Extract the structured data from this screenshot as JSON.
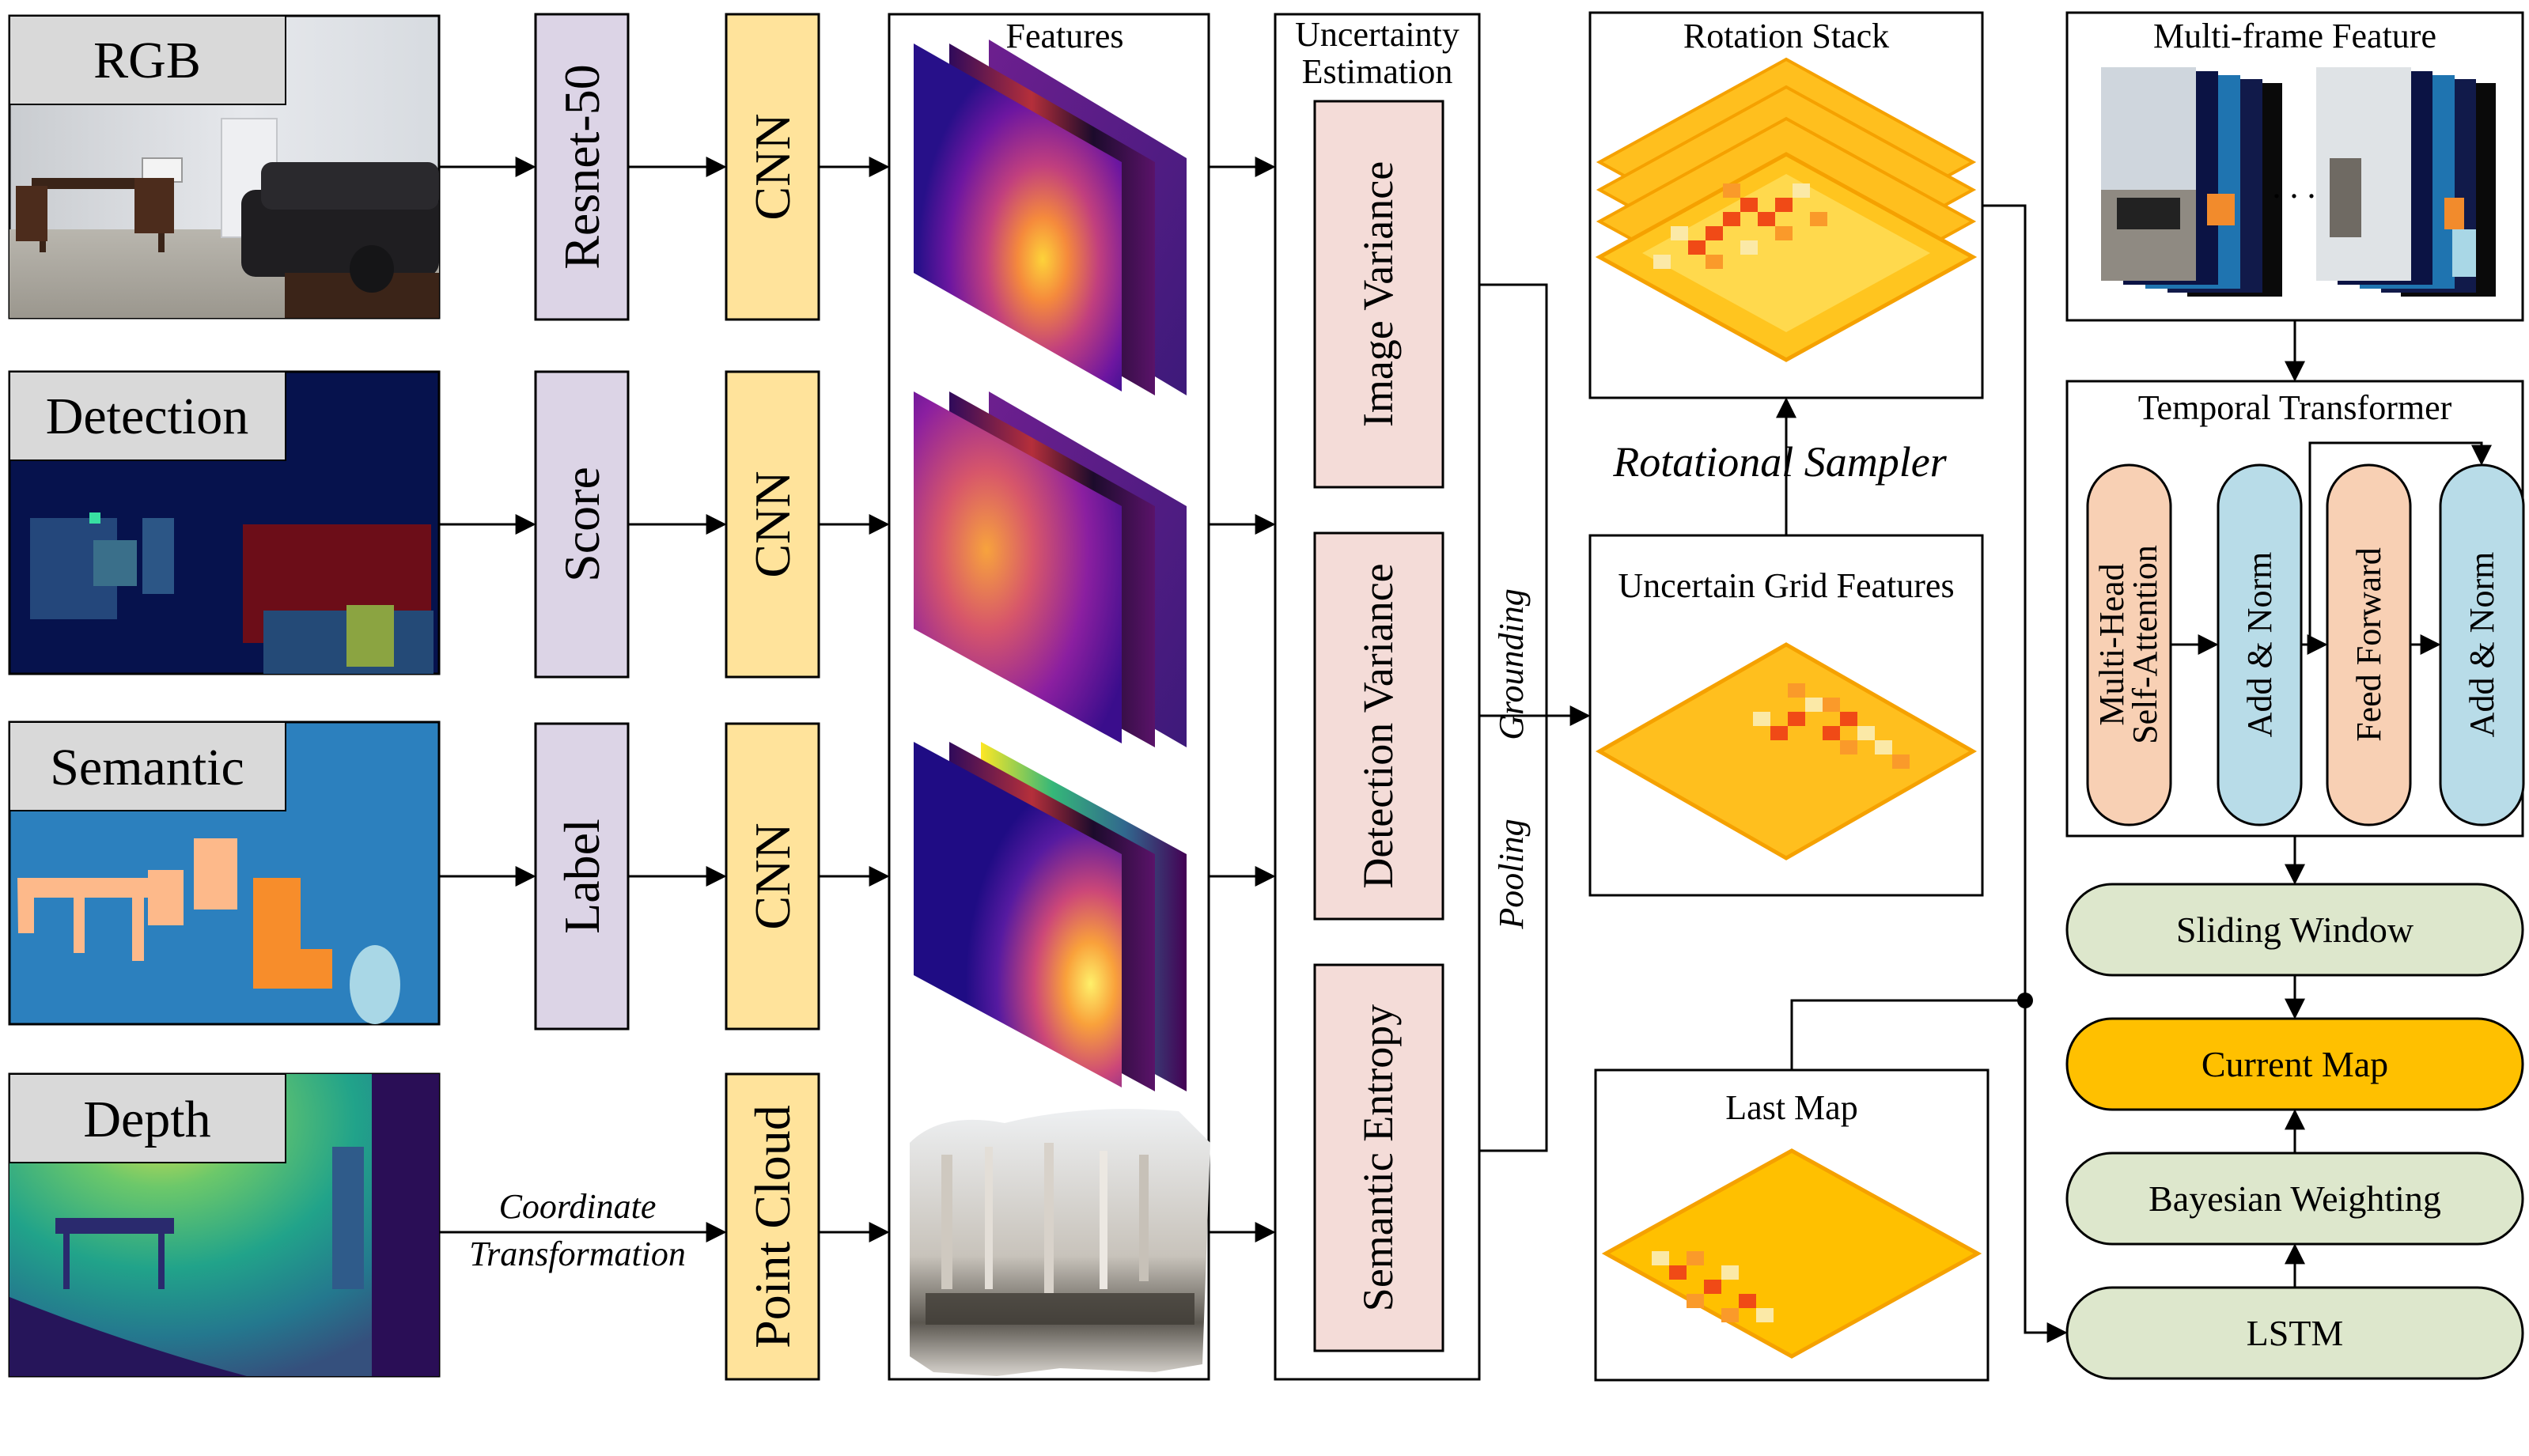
{
  "inputs": {
    "rgb": "RGB",
    "detection": "Detection",
    "semantic": "Semantic",
    "depth": "Depth"
  },
  "encoders": {
    "resnet": "Resnet-50",
    "score": "Score",
    "label": "Label",
    "cnn": "CNN",
    "point_cloud": "Point Cloud",
    "coord_line1": "Coordinate",
    "coord_line2": "Transformation"
  },
  "features": {
    "title": "Features"
  },
  "uncertainty": {
    "title_line1": "Uncertainty",
    "title_line2": "Estimation",
    "image_variance": "Image Variance",
    "detection_variance": "Detection Variance",
    "semantic_entropy": "Semantic Entropy"
  },
  "grounding": {
    "pooling": "Pooling",
    "grounding": "Grounding",
    "rotational_sampler": "Rotational Sampler"
  },
  "maps": {
    "rotation_stack": "Rotation Stack",
    "uncertain_grid": "Uncertain Grid Features",
    "last_map": "Last Map",
    "ellipsis": ". . ."
  },
  "temporal": {
    "multi_frame": "Multi-frame Feature",
    "transformer_title": "Temporal Transformer",
    "mhsa_line1": "Multi-Head",
    "mhsa_line2": "Self-Attention",
    "add_norm": "Add & Norm",
    "feed_forward": "Feed Forward"
  },
  "pipeline": {
    "sliding_window": "Sliding Window",
    "current_map": "Current Map",
    "bayesian_weighting": "Bayesian Weighting",
    "lstm": "LSTM"
  },
  "colors": {
    "encoder_purple": "#dcd4e6",
    "cnn_yellow": "#ffe39b",
    "variance_pink": "#f4dcd8",
    "mhsa_orange": "#f8d0b4",
    "addnorm_blue": "#b8dce8",
    "pill_green": "#dde7cc",
    "current_map_orange": "#ffc000",
    "map_orange": "#ffbf1e"
  }
}
